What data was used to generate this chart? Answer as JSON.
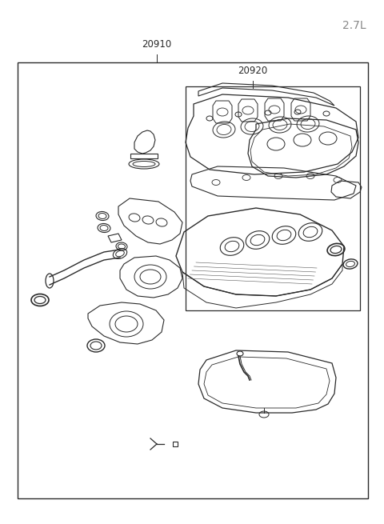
{
  "title": "2.7L",
  "label_20910": "20910",
  "label_20920": "20920",
  "bg_color": "#ffffff",
  "line_color": "#2a2a2a",
  "light_line_color": "#888888",
  "figsize": [
    4.8,
    6.55
  ],
  "dpi": 100
}
